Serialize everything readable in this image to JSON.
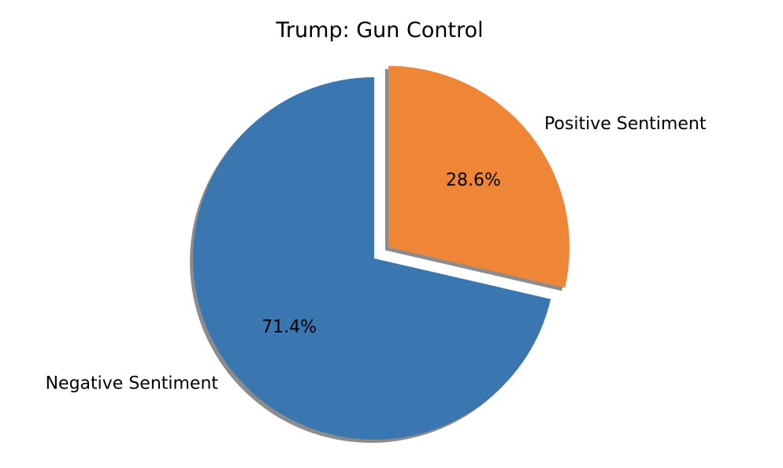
{
  "chart_data": {
    "type": "pie",
    "title": "Trump: Gun Control",
    "slices": [
      {
        "label": "Negative Sentiment",
        "value": 71.4,
        "pct_label": "71.4%",
        "color": "#3a76af",
        "explode": 0
      },
      {
        "label": "Positive Sentiment",
        "value": 28.6,
        "pct_label": "28.6%",
        "color": "#ef8536",
        "explode": 0.1
      }
    ],
    "start_angle_deg": 90,
    "direction": "counterclockwise",
    "shadow": true
  }
}
